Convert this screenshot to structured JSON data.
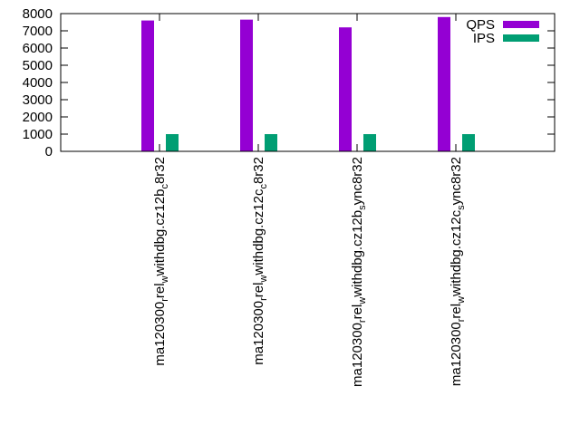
{
  "chart_data": {
    "type": "bar",
    "title": "",
    "xlabel": "",
    "ylabel": "",
    "ylim": [
      0,
      8000
    ],
    "yticks": [
      0,
      1000,
      2000,
      3000,
      4000,
      5000,
      6000,
      7000,
      8000
    ],
    "categories": [
      {
        "base": "ma120300",
        "subs": [
          [
            "rel",
            "r"
          ],
          [
            "withdbg.cz12b",
            "w"
          ],
          [
            "8r32",
            "c"
          ]
        ],
        "text": "ma120300_rel_withdbg.cz12b_c8r32"
      },
      {
        "base": "ma120300",
        "subs": [
          [
            "rel",
            "r"
          ],
          [
            "withdbg.cz12c",
            "w"
          ],
          [
            "8r32",
            "c"
          ]
        ],
        "text": "ma120300_rel_withdbg.cz12c_c8r32"
      },
      {
        "base": "ma120300",
        "subs": [
          [
            "rel",
            "r"
          ],
          [
            "withdbg.cz12b",
            "w"
          ],
          [
            "ync8r32",
            "s"
          ]
        ],
        "text": "ma120300_rel_withdbg.cz12b_sync8r32"
      },
      {
        "base": "ma120300",
        "subs": [
          [
            "rel",
            "r"
          ],
          [
            "withdbg.cz12c",
            "w"
          ],
          [
            "ync8r32",
            "s"
          ]
        ],
        "text": "ma120300_rel_withdbg.cz12c_sync8r32"
      }
    ],
    "series": [
      {
        "name": "QPS",
        "color": "#9400d3",
        "values": [
          7600,
          7650,
          7200,
          7800
        ]
      },
      {
        "name": "IPS",
        "color": "#009e73",
        "values": [
          1000,
          1000,
          1000,
          1000
        ]
      }
    ],
    "legend": "top-right",
    "grid": false
  }
}
